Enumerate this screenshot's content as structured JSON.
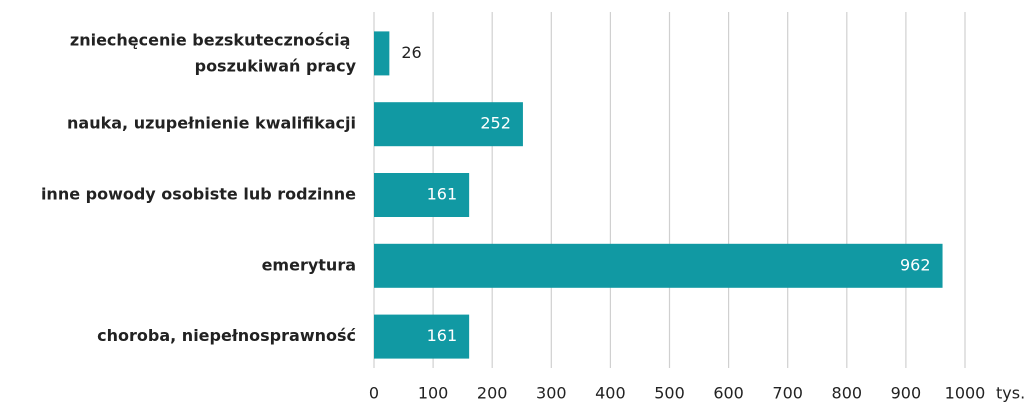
{
  "chart_data": {
    "type": "bar",
    "orientation": "horizontal",
    "categories": [
      "zniechęcenie bezskutecznością poszukiwań pracy",
      "nauka, uzupełnienie kwalifikacji",
      "inne powody osobiste lub rodzinne",
      "emerytura",
      "choroba, niepełnosprawność"
    ],
    "values": [
      26,
      252,
      161,
      962,
      161
    ],
    "color": "#1199a3",
    "xlim": [
      0,
      1000
    ],
    "xticks": [
      0,
      100,
      200,
      300,
      400,
      500,
      600,
      700,
      800,
      900,
      1000
    ],
    "x_label": "tys.",
    "grid": true
  }
}
